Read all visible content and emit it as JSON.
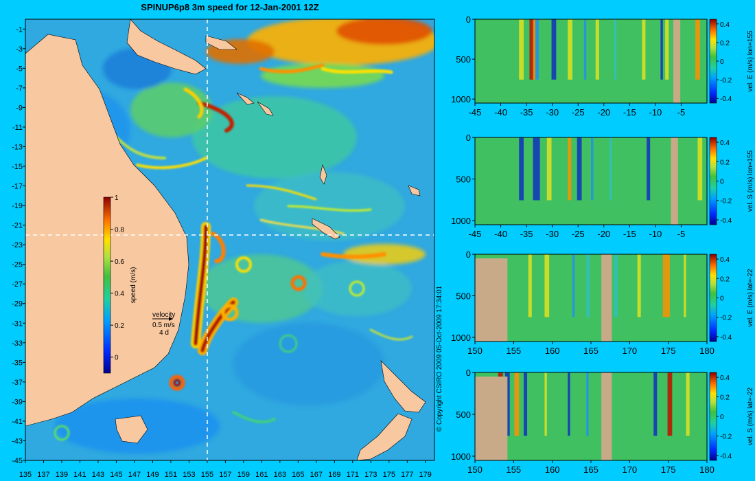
{
  "colors": {
    "background": "#00ccff",
    "land": "#f8c8a0",
    "section_land": "#c8aa88",
    "text": "#000000"
  },
  "map": {
    "title": "SPINUP6p8 3m speed for 12-Jan-2001 12Z",
    "copyright": "© Copyright CSIRO 2009  05-Oct-2009 17:34:01",
    "velocity_legend": {
      "label": "velocity",
      "value": "0.5 m/s",
      "time": "4 d"
    },
    "colorbar": {
      "label": "speed (m/s)",
      "ticks": [
        "1",
        "0.8",
        "0.6",
        "0.4",
        "0.2",
        "0"
      ]
    },
    "section_lines": {
      "lon": "155",
      "lat": "-22"
    }
  },
  "chart_data": [
    {
      "type": "heatmap",
      "title": "SPINUP6p8 3m speed for 12-Jan-2001 12Z",
      "x_ticks": [
        "135",
        "137",
        "139",
        "141",
        "143",
        "145",
        "147",
        "149",
        "151",
        "153",
        "155",
        "157",
        "159",
        "161",
        "163",
        "165",
        "167",
        "169",
        "171",
        "173",
        "175",
        "177",
        "179"
      ],
      "y_ticks": [
        "-1",
        "-3",
        "-5",
        "-7",
        "-9",
        "-11",
        "-13",
        "-15",
        "-17",
        "-19",
        "-21",
        "-23",
        "-25",
        "-27",
        "-29",
        "-31",
        "-33",
        "-35",
        "-37",
        "-39",
        "-41",
        "-43",
        "-45"
      ],
      "xlim": [
        135,
        180
      ],
      "ylim": [
        -45,
        0
      ],
      "colorbar_label": "speed (m/s)",
      "colorbar_range": [
        -0.1,
        1.0
      ]
    },
    {
      "type": "heatmap",
      "ylabel": "vel. E (m/s) lon=155",
      "x_ticks": [
        "-45",
        "-40",
        "-35",
        "-30",
        "-25",
        "-20",
        "-15",
        "-10",
        "-5"
      ],
      "y_ticks": [
        "0",
        "500",
        "1000"
      ],
      "xlim": [
        -45,
        0
      ],
      "ylim": [
        1050,
        0
      ],
      "colorbar_ticks": [
        "0.4",
        "0.2",
        "0",
        "-0.2",
        "-0.4"
      ],
      "colorbar_range": [
        -0.45,
        0.45
      ]
    },
    {
      "type": "heatmap",
      "ylabel": "vel. S (m/s) lon=155",
      "x_ticks": [
        "-45",
        "-40",
        "-35",
        "-30",
        "-25",
        "-20",
        "-15",
        "-10",
        "-5"
      ],
      "y_ticks": [
        "0",
        "500",
        "1000"
      ],
      "xlim": [
        -45,
        0
      ],
      "ylim": [
        1050,
        0
      ],
      "colorbar_ticks": [
        "0.4",
        "0.2",
        "0",
        "-0.2",
        "-0.4"
      ],
      "colorbar_range": [
        -0.45,
        0.45
      ]
    },
    {
      "type": "heatmap",
      "ylabel": "vel. E (m/s) lat=-22",
      "x_ticks": [
        "150",
        "155",
        "160",
        "165",
        "170",
        "175",
        "180"
      ],
      "y_ticks": [
        "0",
        "500",
        "1000"
      ],
      "xlim": [
        150,
        180
      ],
      "ylim": [
        1050,
        0
      ],
      "colorbar_ticks": [
        "0.4",
        "0.2",
        "0",
        "-0.2",
        "-0.4"
      ],
      "colorbar_range": [
        -0.45,
        0.45
      ]
    },
    {
      "type": "heatmap",
      "ylabel": "vel. S (m/s) lat=-22",
      "x_ticks": [
        "150",
        "155",
        "160",
        "165",
        "170",
        "175",
        "180"
      ],
      "y_ticks": [
        "0",
        "500",
        "1000"
      ],
      "xlim": [
        150,
        180
      ],
      "ylim": [
        1050,
        0
      ],
      "colorbar_ticks": [
        "0.4",
        "0.2",
        "0",
        "-0.2",
        "-0.4"
      ],
      "colorbar_range": [
        -0.45,
        0.45
      ]
    }
  ]
}
